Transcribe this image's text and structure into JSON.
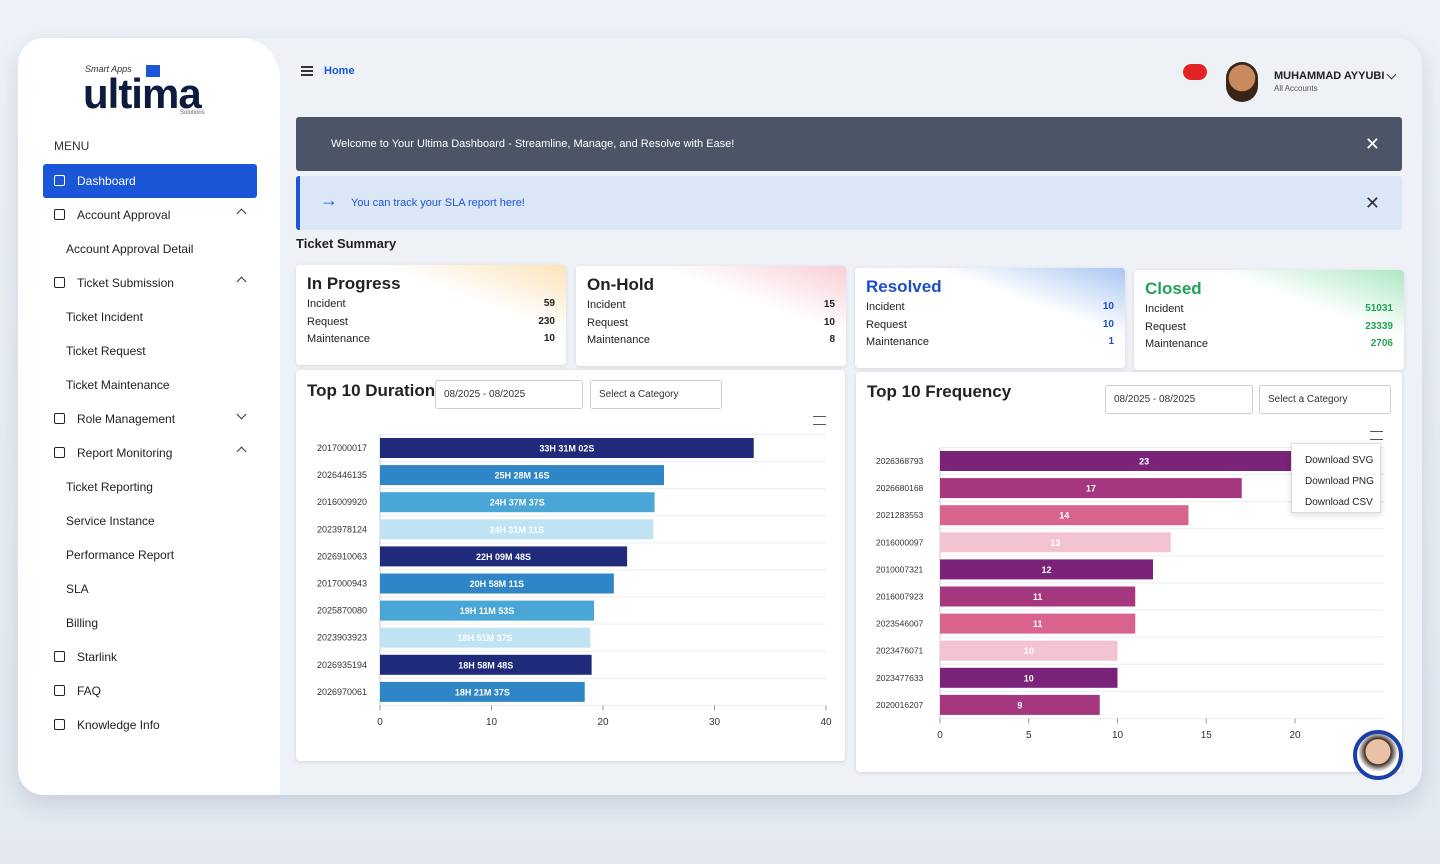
{
  "logo": {
    "tagline": "Smart Apps",
    "name": "ultima",
    "sub": "Solutions"
  },
  "menu_label": "MENU",
  "menu": [
    {
      "label": "Dashboard"
    },
    {
      "label": "Account Approval",
      "children": [
        "Account Approval Detail"
      ]
    },
    {
      "label": "Ticket Submission",
      "children": [
        "Ticket Incident",
        "Ticket Request",
        "Ticket Maintenance"
      ]
    },
    {
      "label": "Role Management"
    },
    {
      "label": "Report Monitoring",
      "children": [
        "Ticket Reporting",
        "Service Instance",
        "Performance Report",
        "SLA",
        "Billing"
      ]
    },
    {
      "label": "Starlink"
    },
    {
      "label": "FAQ"
    },
    {
      "label": "Knowledge Info"
    }
  ],
  "header": {
    "breadcrumb": "Home",
    "user_name": "MUHAMMAD AYYUBI",
    "user_role": "All Accounts"
  },
  "banners": [
    "Welcome to Your Ultima Dashboard - Streamline, Manage, and Resolve with Ease!",
    "You can track your SLA report here!"
  ],
  "ticket_summary": {
    "title": "Ticket Summary",
    "cards": [
      {
        "title": "In Progress",
        "rows": [
          {
            "label": "Incident",
            "value": 59
          },
          {
            "label": "Request",
            "value": 230
          },
          {
            "label": "Maintenance",
            "value": 10
          }
        ]
      },
      {
        "title": "On-Hold",
        "rows": [
          {
            "label": "Incident",
            "value": 15
          },
          {
            "label": "Request",
            "value": 10
          },
          {
            "label": "Maintenance",
            "value": 8
          }
        ]
      },
      {
        "title": "Resolved",
        "rows": [
          {
            "label": "Incident",
            "value": 10
          },
          {
            "label": "Request",
            "value": 10
          },
          {
            "label": "Maintenance",
            "value": 1
          }
        ]
      },
      {
        "title": "Closed",
        "rows": [
          {
            "label": "Incident",
            "value": 51031
          },
          {
            "label": "Request",
            "value": 23339
          },
          {
            "label": "Maintenance",
            "value": 2706
          }
        ]
      }
    ]
  },
  "chart_data": [
    {
      "type": "bar",
      "horizontal": true,
      "title": "Top 10 Duration",
      "date_range": "08/2025 - 08/2025",
      "category_placeholder": "Select a Category",
      "categories": [
        "2017000017",
        "2026446135",
        "2016009920",
        "2023978124",
        "2026910063",
        "2017000943",
        "2025870080",
        "2023903923",
        "2026935194",
        "2026970061"
      ],
      "values": [
        33.5172,
        25.4711,
        24.6269,
        24.5197,
        22.1633,
        20.9697,
        19.1981,
        18.8603,
        18.98,
        18.3603
      ],
      "value_labels": [
        "33H 31M 02S",
        "25H 28M 16S",
        "24H 37M 37S",
        "24H 31M 11S",
        "22H 09M 48S",
        "20H 58M 11S",
        "19H 11M 53S",
        "18H 51M 37S",
        "18H 58M 48S",
        "18H 21M 37S"
      ],
      "colors": [
        "#1f2a7a",
        "#2e86c6",
        "#49a6d6",
        "#bfe3f3",
        "#1f2a7a",
        "#2e86c6",
        "#49a6d6",
        "#bfe3f3",
        "#1f2a7a",
        "#2e86c6"
      ],
      "xlim": [
        0,
        40
      ],
      "xticks": [
        0,
        10,
        20,
        30,
        40
      ]
    },
    {
      "type": "bar",
      "horizontal": true,
      "title": "Top 10 Frequency",
      "date_range": "08/2025 - 08/2025",
      "category_placeholder": "Select a Category",
      "export_menu": [
        "Download SVG",
        "Download PNG",
        "Download CSV"
      ],
      "categories": [
        "2026368793",
        "2026680168",
        "2021283553",
        "2016000097",
        "2010007321",
        "2016007923",
        "2023546007",
        "2023476071",
        "2023477633",
        "2020016207"
      ],
      "values": [
        23,
        17,
        14,
        13,
        12,
        11,
        11,
        10,
        10,
        9
      ],
      "colors": [
        "#7b2378",
        "#a5377f",
        "#d8648e",
        "#f3c3d1",
        "#7b2378",
        "#a5377f",
        "#d8648e",
        "#f3c3d1",
        "#7b2378",
        "#a5377f"
      ],
      "xlim": [
        0,
        25
      ],
      "xticks": [
        0,
        5,
        10,
        15,
        20
      ]
    }
  ]
}
